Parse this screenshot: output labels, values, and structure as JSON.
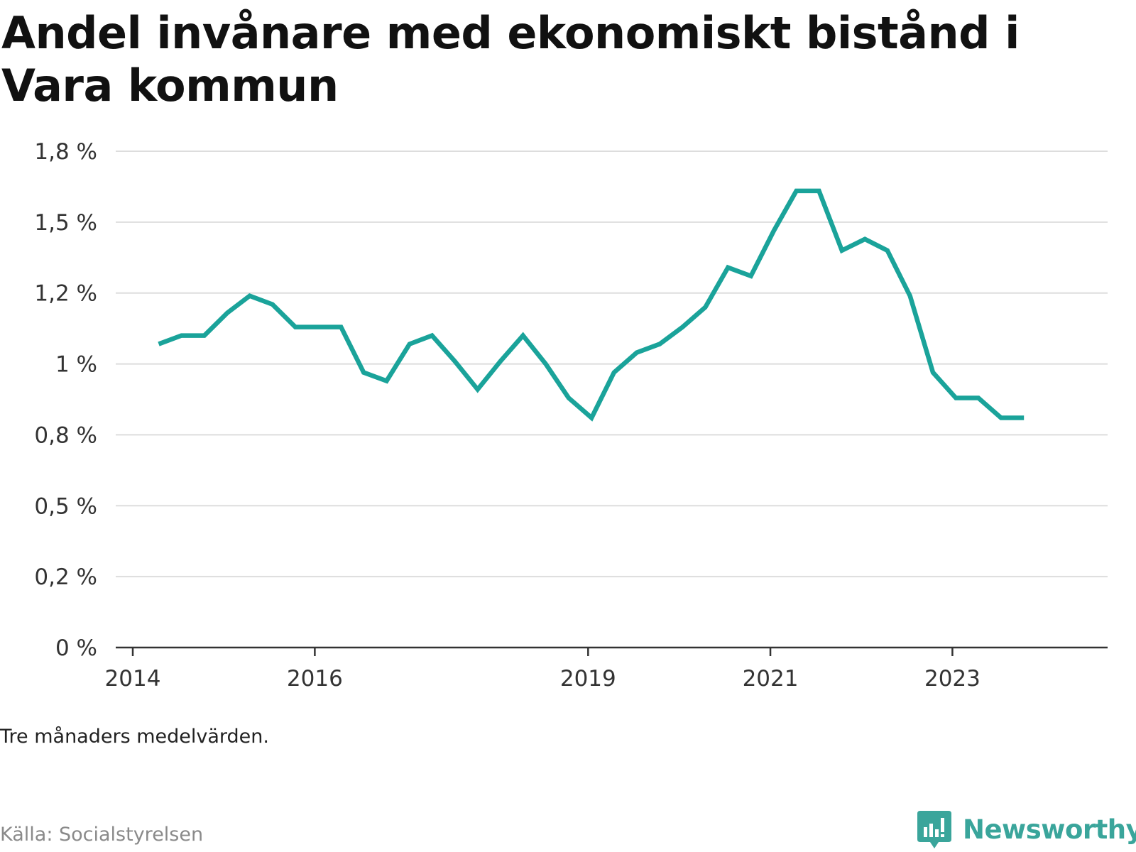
{
  "title": "Andel invånare med ekonomiskt bistånd i Vara kommun",
  "note": "Tre månaders medelvärden.",
  "source": "Källa: Socialstyrelsen",
  "brand": {
    "name": "Newsworthy",
    "icon": "newsworthy-logo-icon"
  },
  "colors": {
    "line": "#1aa39a",
    "grid": "#dddddd",
    "axis": "#333333",
    "brand": "#3aa59b"
  },
  "chart_data": {
    "type": "line",
    "title": "Andel invånare med ekonomiskt bistånd i Vara kommun",
    "xlabel": "",
    "ylabel": "",
    "ylim": [
      0,
      1.75
    ],
    "xlim": [
      "2014-01-01",
      "2024-06-01"
    ],
    "grid": true,
    "y_ticks": [
      {
        "value": 0,
        "label": "0 %"
      },
      {
        "value": 0.25,
        "label": "0,2 %"
      },
      {
        "value": 0.5,
        "label": "0,5 %"
      },
      {
        "value": 0.75,
        "label": "0,8 %"
      },
      {
        "value": 1.0,
        "label": "1 %"
      },
      {
        "value": 1.25,
        "label": "1,2 %"
      },
      {
        "value": 1.5,
        "label": "1,5 %"
      },
      {
        "value": 1.75,
        "label": "1,8 %"
      }
    ],
    "x_ticks": [
      {
        "date": "2014-01-01",
        "label": "2014"
      },
      {
        "date": "2016-01-01",
        "label": "2016"
      },
      {
        "date": "2019-01-01",
        "label": "2019"
      },
      {
        "date": "2021-01-01",
        "label": "2021"
      },
      {
        "date": "2023-01-01",
        "label": "2023"
      }
    ],
    "series": [
      {
        "points": [
          [
            "2014-04-15",
            1.07
          ],
          [
            "2014-07-15",
            1.1
          ],
          [
            "2014-10-15",
            1.1
          ],
          [
            "2015-01-15",
            1.18
          ],
          [
            "2015-04-15",
            1.24
          ],
          [
            "2015-07-15",
            1.21
          ],
          [
            "2015-10-15",
            1.13
          ],
          [
            "2016-01-15",
            1.13
          ],
          [
            "2016-04-15",
            1.13
          ],
          [
            "2016-07-15",
            0.97
          ],
          [
            "2016-10-15",
            0.94
          ],
          [
            "2017-01-15",
            1.07
          ],
          [
            "2017-04-15",
            1.1
          ],
          [
            "2017-07-15",
            1.01
          ],
          [
            "2017-10-15",
            0.91
          ],
          [
            "2018-01-15",
            1.01
          ],
          [
            "2018-04-15",
            1.1
          ],
          [
            "2018-07-15",
            1.0
          ],
          [
            "2018-10-15",
            0.88
          ],
          [
            "2019-01-15",
            0.81
          ],
          [
            "2019-04-15",
            0.97
          ],
          [
            "2019-07-15",
            1.04
          ],
          [
            "2019-10-15",
            1.07
          ],
          [
            "2020-01-15",
            1.13
          ],
          [
            "2020-04-15",
            1.2
          ],
          [
            "2020-07-15",
            1.34
          ],
          [
            "2020-10-15",
            1.31
          ],
          [
            "2021-01-15",
            1.47
          ],
          [
            "2021-04-15",
            1.61
          ],
          [
            "2021-07-15",
            1.61
          ],
          [
            "2021-10-15",
            1.4
          ],
          [
            "2022-01-15",
            1.44
          ],
          [
            "2022-04-15",
            1.4
          ],
          [
            "2022-07-15",
            1.24
          ],
          [
            "2022-10-15",
            0.97
          ],
          [
            "2023-01-15",
            0.88
          ],
          [
            "2023-04-15",
            0.88
          ],
          [
            "2023-07-15",
            0.81
          ],
          [
            "2023-10-15",
            0.81
          ]
        ]
      }
    ]
  }
}
